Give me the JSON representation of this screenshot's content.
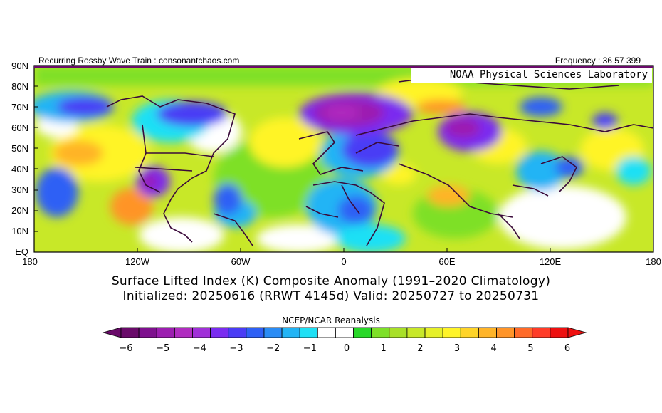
{
  "header": {
    "left": "Recurring Rossby Wave Train : consonantchaos.com",
    "right": "Frequency : 36 57 399",
    "map_credit": "NOAA Physical Sciences Laboratory"
  },
  "map": {
    "extent": {
      "lon": [
        -180,
        180
      ],
      "lat": [
        0,
        90
      ]
    },
    "lat_labels": [
      "90N",
      "80N",
      "70N",
      "60N",
      "50N",
      "40N",
      "30N",
      "20N",
      "10N",
      "EQ"
    ],
    "lon_labels": [
      "180",
      "120W",
      "60W",
      "0",
      "60E",
      "120E",
      "180"
    ]
  },
  "titles": {
    "line1": "Surface Lifted Index (K) Composite Anomaly (1991–2020 Climatology)",
    "line2": "Initialized: 20250616 (RRWT 4145d) Valid: 20250727 to 20250731"
  },
  "colorbar": {
    "title": "NCEP/NCAR Reanalysis",
    "tick_labels": [
      "−6",
      "−5",
      "−4",
      "−3",
      "−2",
      "−1",
      "0",
      "1",
      "2",
      "3",
      "4",
      "5",
      "6"
    ],
    "colors": [
      "#6a0a6a",
      "#7e108e",
      "#9c1eb0",
      "#b02cc0",
      "#a030d8",
      "#7a2cf0",
      "#4a3cf5",
      "#2e60f5",
      "#2a8cf5",
      "#22b4f5",
      "#1ee0f5",
      "#ffffff",
      "#ffffff",
      "#28d828",
      "#7ee028",
      "#a8e028",
      "#c8e828",
      "#e6f028",
      "#fff428",
      "#ffd428",
      "#ffb428",
      "#ff9428",
      "#ff6a28",
      "#ff3c28",
      "#ee1010"
    ]
  }
}
